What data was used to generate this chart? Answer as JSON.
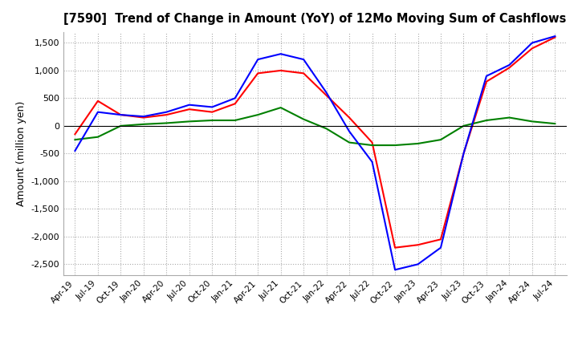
{
  "title": "[7590]  Trend of Change in Amount (YoY) of 12Mo Moving Sum of Cashflows",
  "ylabel": "Amount (million yen)",
  "ylim": [
    -2700,
    1700
  ],
  "yticks": [
    -2500,
    -2000,
    -1500,
    -1000,
    -500,
    0,
    500,
    1000,
    1500
  ],
  "x_labels": [
    "Apr-19",
    "Jul-19",
    "Oct-19",
    "Jan-20",
    "Apr-20",
    "Jul-20",
    "Oct-20",
    "Jan-21",
    "Apr-21",
    "Jul-21",
    "Oct-21",
    "Jan-22",
    "Apr-22",
    "Jul-22",
    "Oct-22",
    "Jan-23",
    "Apr-23",
    "Jul-23",
    "Oct-23",
    "Jan-24",
    "Apr-24",
    "Jul-24"
  ],
  "operating": [
    -150,
    450,
    200,
    150,
    200,
    300,
    250,
    400,
    950,
    1000,
    950,
    550,
    150,
    -300,
    -2200,
    -2150,
    -2050,
    -500,
    800,
    1050,
    1400,
    1600
  ],
  "investing": [
    -250,
    -200,
    0,
    30,
    50,
    80,
    100,
    100,
    200,
    330,
    120,
    -50,
    -300,
    -350,
    -350,
    -320,
    -250,
    0,
    100,
    150,
    80,
    40
  ],
  "free": [
    -450,
    250,
    200,
    170,
    250,
    380,
    340,
    500,
    1200,
    1300,
    1200,
    600,
    -100,
    -650,
    -2600,
    -2500,
    -2200,
    -500,
    900,
    1100,
    1500,
    1620
  ],
  "operating_color": "#ff0000",
  "investing_color": "#008000",
  "free_color": "#0000ff",
  "background_color": "#ffffff"
}
